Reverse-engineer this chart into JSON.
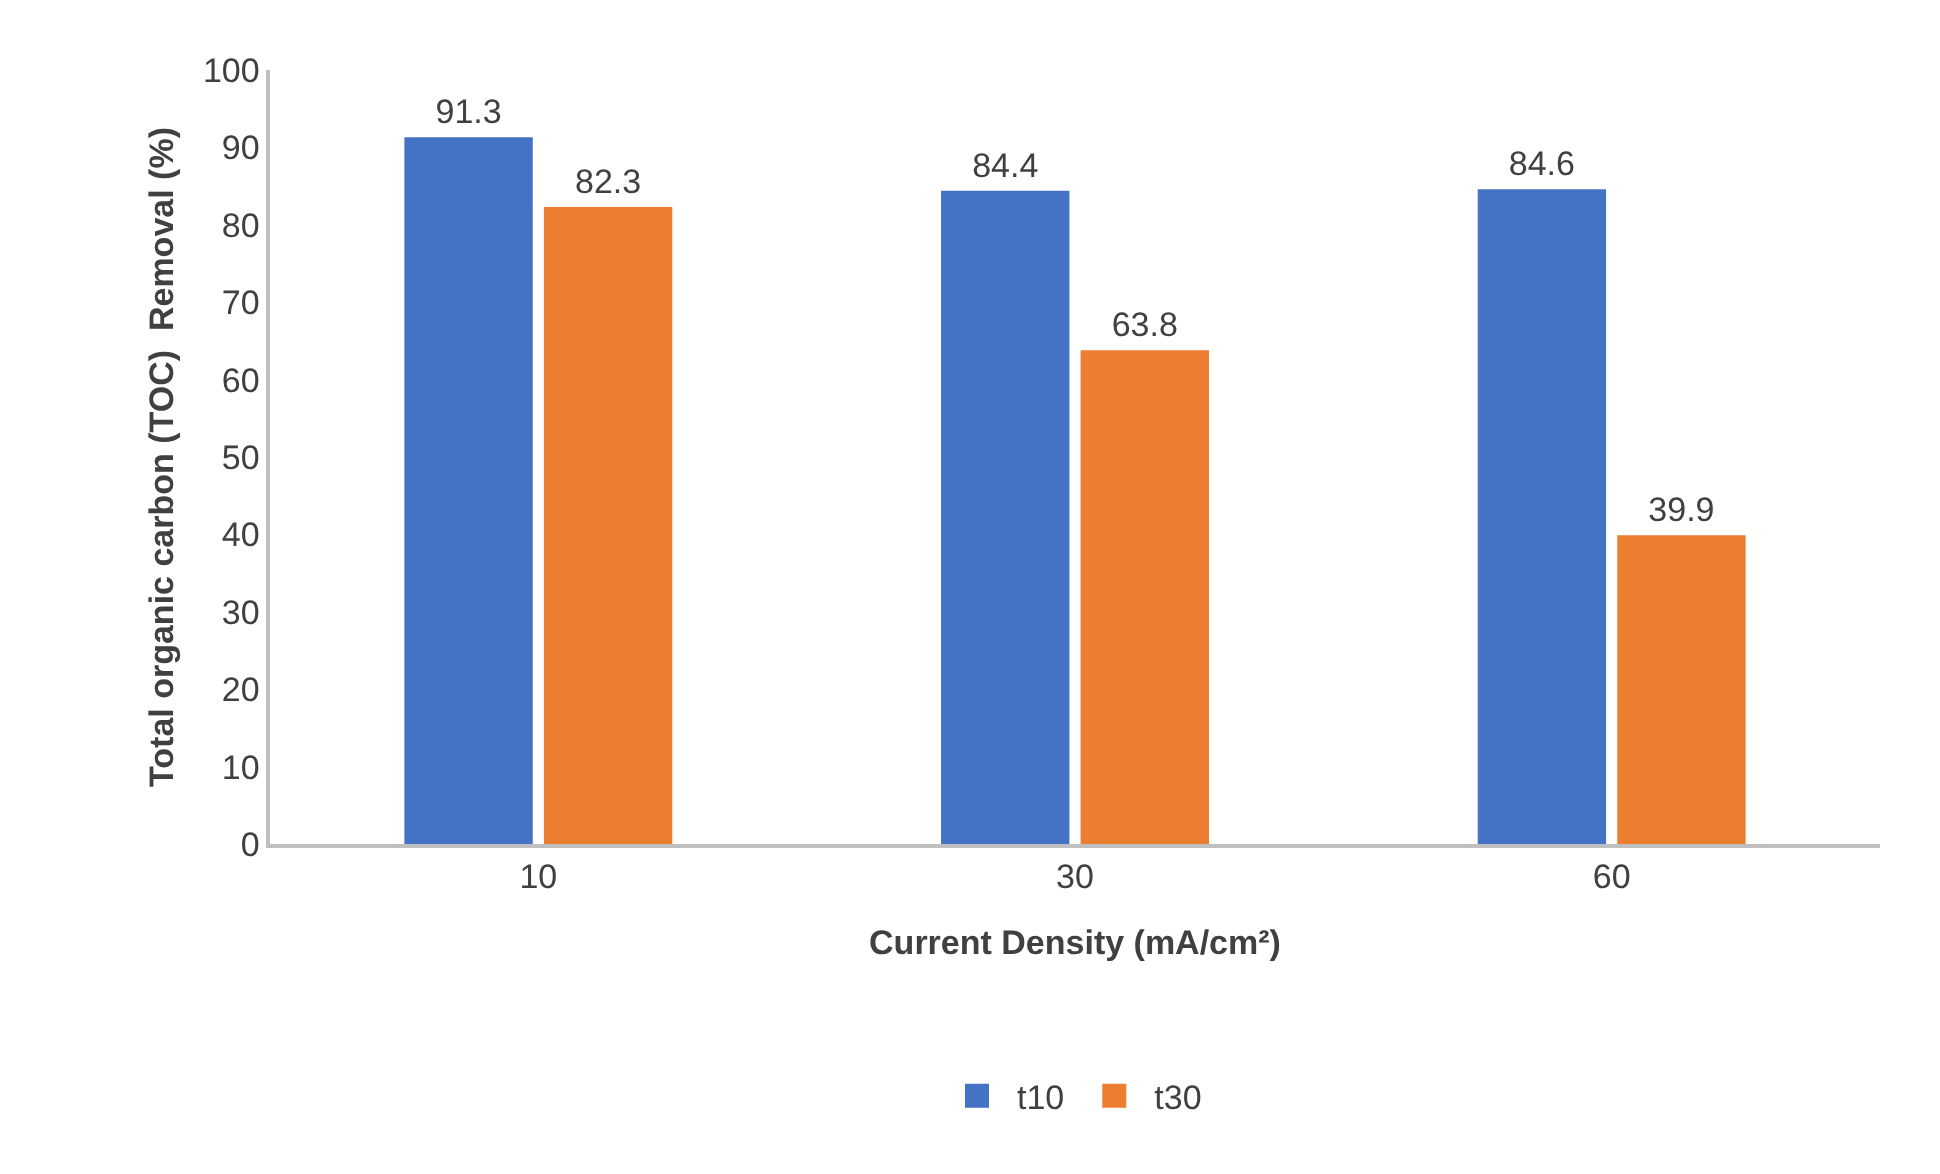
{
  "chart_data": {
    "type": "bar",
    "xlabel": "Current Density (mA/cm²)",
    "ylabel": "Total organic carbon (TOC)  Removal (%)",
    "categories": [
      "10",
      "30",
      "60"
    ],
    "series": [
      {
        "name": "t10",
        "color": "#4472c4",
        "values": [
          91.3,
          84.4,
          84.6
        ]
      },
      {
        "name": "t30",
        "color": "#ed7d31",
        "values": [
          82.3,
          63.8,
          39.9
        ]
      }
    ],
    "ylim": [
      0,
      100
    ],
    "yticks": [
      0,
      10,
      20,
      30,
      40,
      50,
      60,
      70,
      80,
      90,
      100
    ],
    "grid": false,
    "legend": "bottom",
    "data_labels": true
  }
}
